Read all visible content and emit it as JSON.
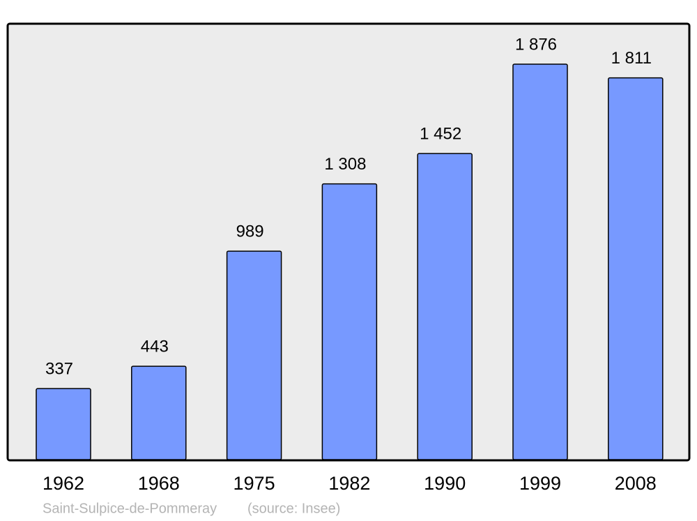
{
  "chart_data": {
    "type": "bar",
    "categories": [
      "1962",
      "1968",
      "1975",
      "1982",
      "1990",
      "1999",
      "2008"
    ],
    "values": [
      337,
      443,
      989,
      1308,
      1452,
      1876,
      1811
    ],
    "value_labels": [
      "337",
      "443",
      "989",
      "1 308",
      "1 452",
      "1 876",
      "1 811"
    ],
    "color": "#7799ff",
    "caption": "Saint-Sulpice-de-Pommeray",
    "source": "(source: Insee)"
  }
}
